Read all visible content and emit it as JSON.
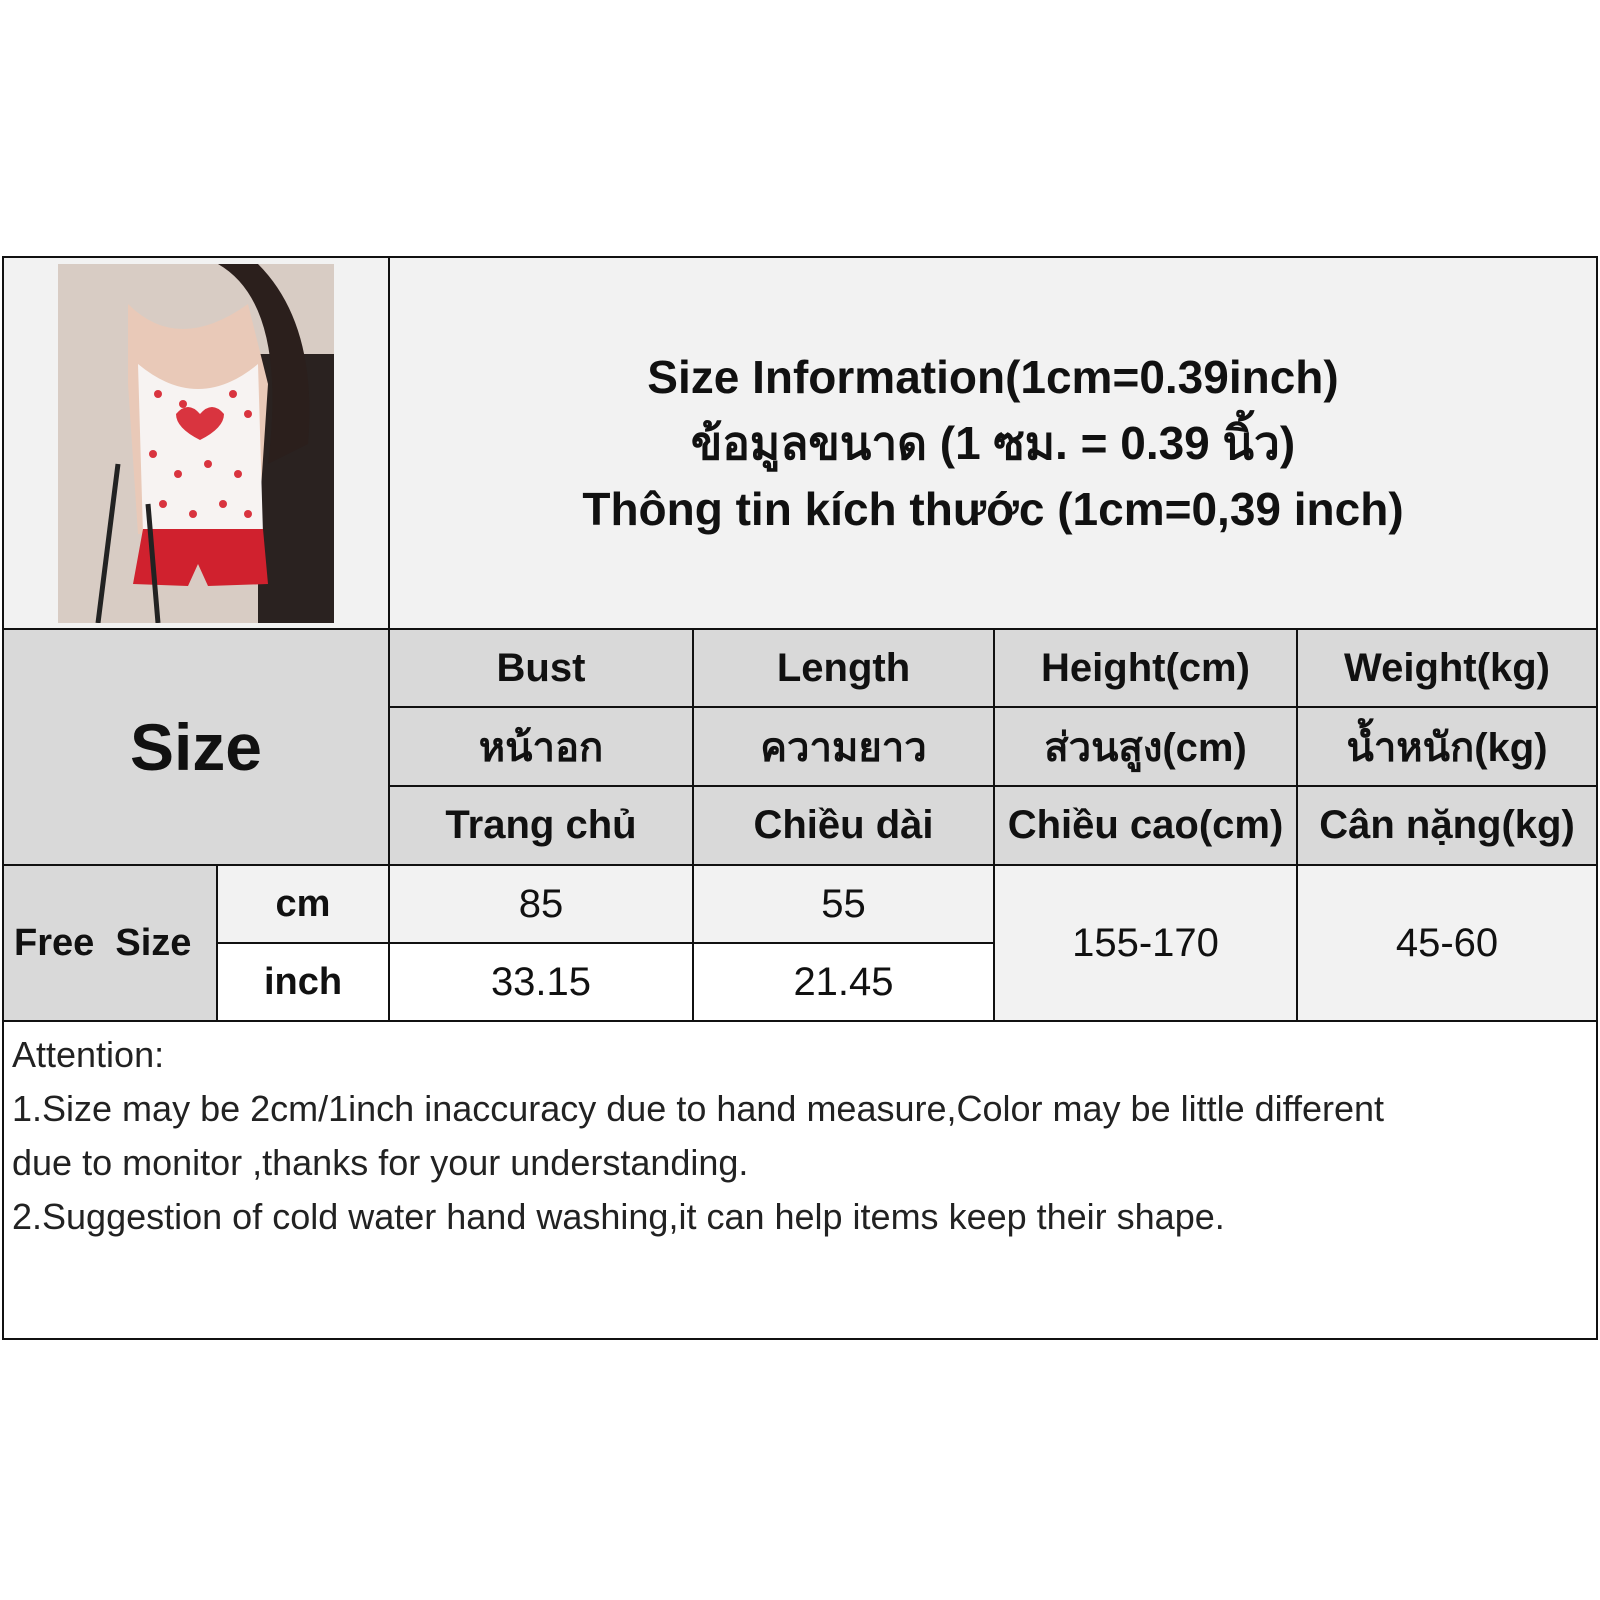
{
  "title": {
    "line1": "Size Information(1cm=0.39inch)",
    "line2": "ข้อมูลขนาด (1 ซม. = 0.39 นิ้ว)",
    "line3": "Thông tin kích thước (1cm=0,39 inch)"
  },
  "size_header": "Size",
  "columns": [
    {
      "en": "Bust",
      "th": "หน้าอก",
      "vi": "Trang chủ"
    },
    {
      "en": "Length",
      "th": "ความยาว",
      "vi": "Chiều dài"
    },
    {
      "en": "Height(cm)",
      "th": "ส่วนสูง(cm)",
      "vi": "Chiều cao(cm)"
    },
    {
      "en": "Weight(kg)",
      "th": "น้ำหนัก(kg)",
      "vi": "Cân nặng(kg)"
    }
  ],
  "rows": {
    "size_label": "Free  Size",
    "cm": {
      "unit": "cm",
      "bust": "85",
      "length": "55"
    },
    "inch": {
      "unit": "inch",
      "bust": "33.15",
      "length": "21.45"
    },
    "height": "155-170",
    "weight": "45-60"
  },
  "notes": {
    "heading": "Attention:",
    "line1": "1.Size may be 2cm/1inch inaccuracy due to hand measure,Color may be little different",
    "line2": "due to monitor ,thanks for your understanding.",
    "line3": "2.Suggestion of cold water hand washing,it can help items keep their shape."
  },
  "colors": {
    "header_bg": "#d9d9d9",
    "light_bg": "#f2f2f2",
    "border": "#111111",
    "garment_red": "#d0212e"
  }
}
